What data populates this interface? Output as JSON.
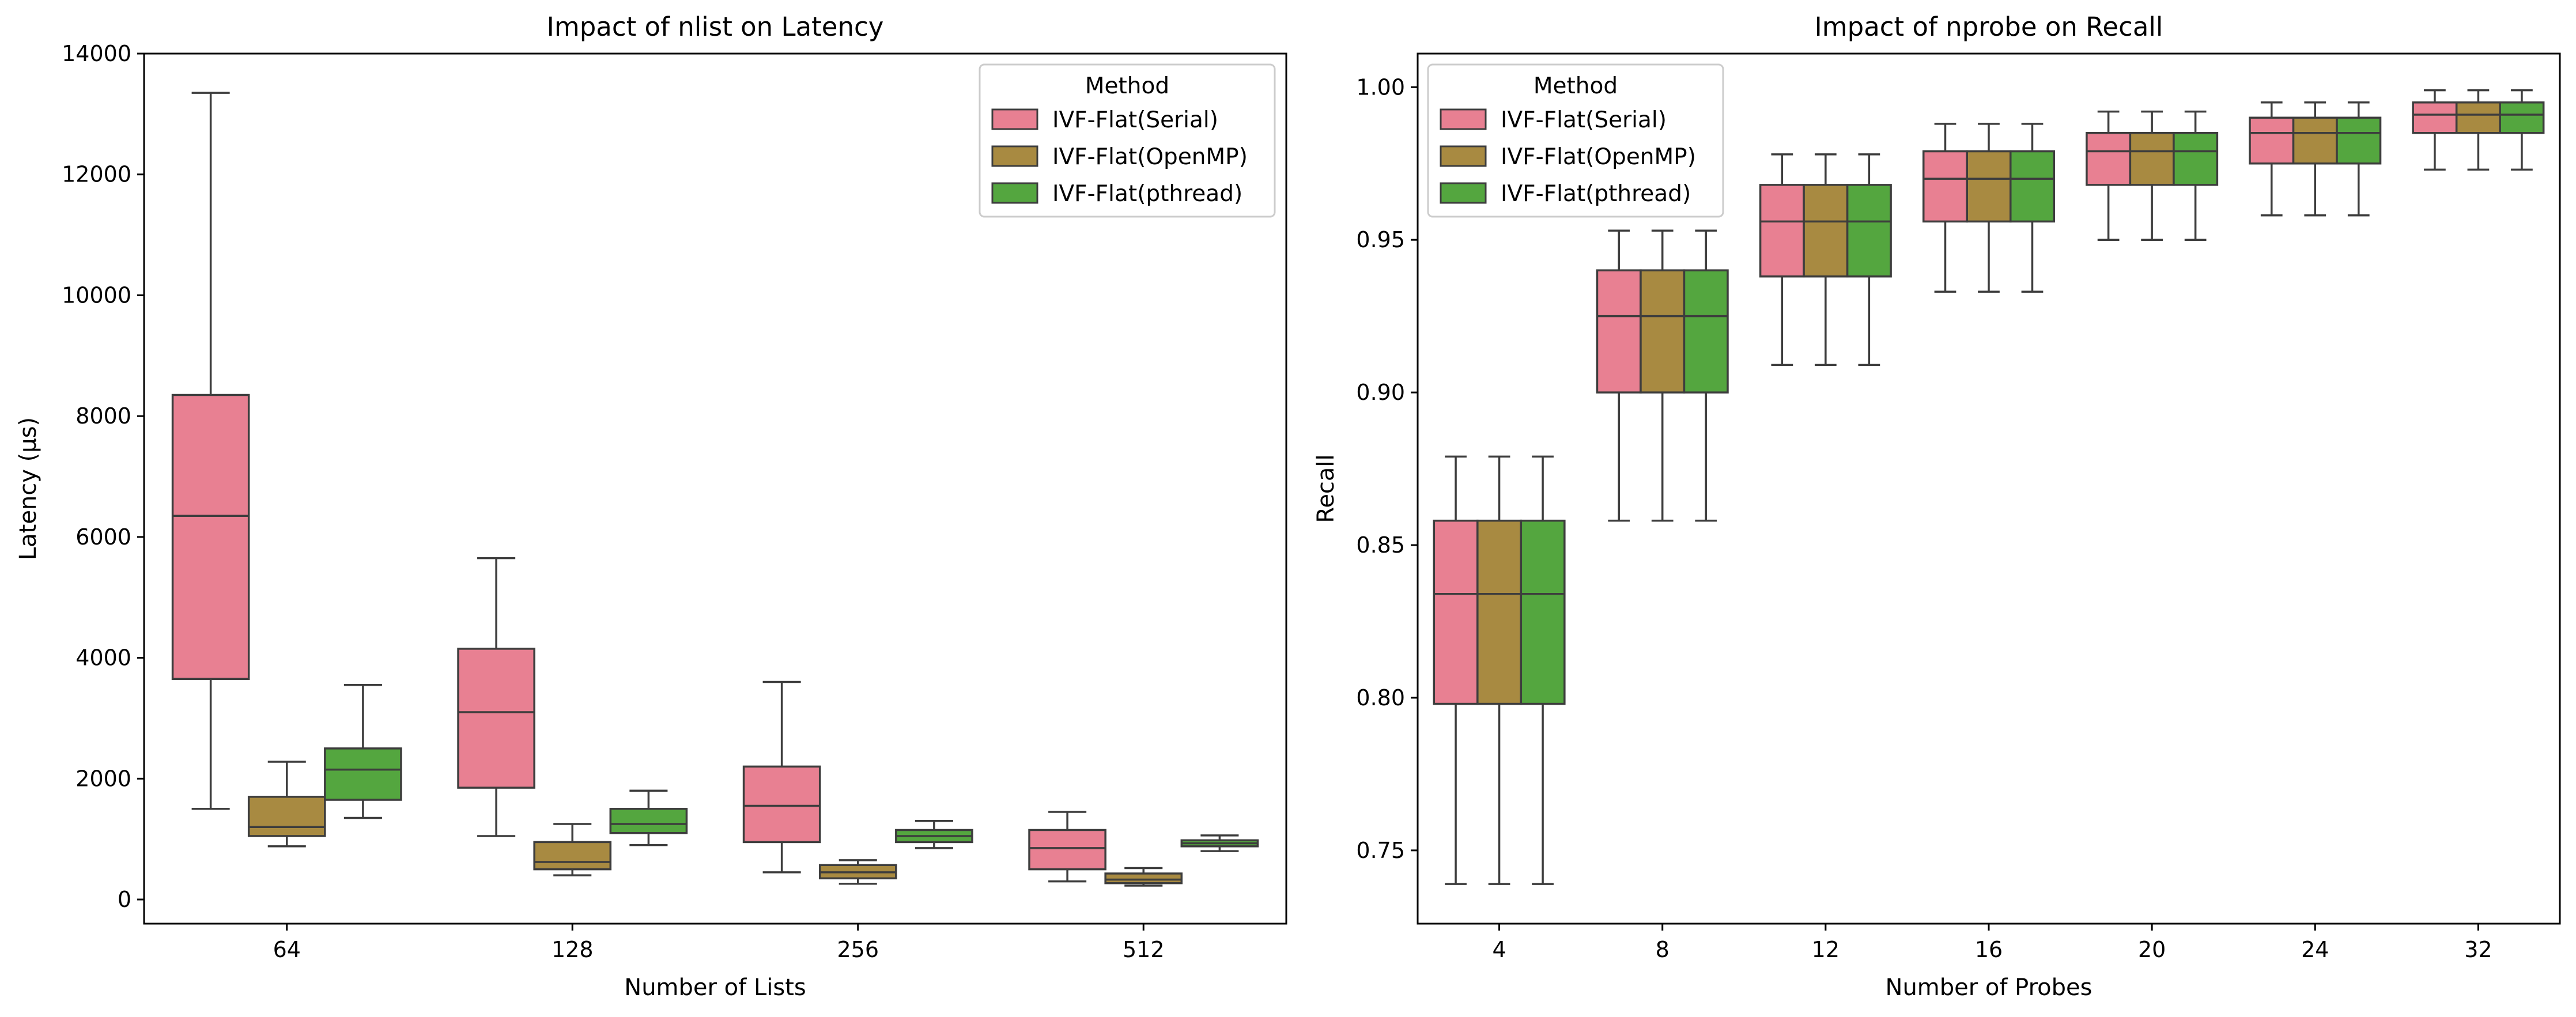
{
  "figure": {
    "colors": {
      "IVF-Flat(Serial)": "#e88092",
      "IVF-Flat(OpenMP)": "#a88a41",
      "IVF-Flat(pthread)": "#54a63f",
      "box_edge": "#3d3d3d"
    }
  },
  "chart_data": [
    {
      "type": "box",
      "title": "Impact of nlist on Latency",
      "xlabel": "Number of Lists",
      "ylabel": "Latency (µs)",
      "categories": [
        "64",
        "128",
        "256",
        "512"
      ],
      "ylim": [
        -400,
        14000
      ],
      "yticks": [
        0,
        2000,
        4000,
        6000,
        8000,
        10000,
        12000,
        14000
      ],
      "grid": false,
      "legend": {
        "title": "Method",
        "position": "top-right",
        "entries": [
          "IVF-Flat(Serial)",
          "IVF-Flat(OpenMP)",
          "IVF-Flat(pthread)"
        ]
      },
      "series": [
        {
          "name": "IVF-Flat(Serial)",
          "boxes": [
            {
              "whisker_low": 1500,
              "q1": 3650,
              "median": 6350,
              "q3": 8350,
              "whisker_high": 13350
            },
            {
              "whisker_low": 1050,
              "q1": 1850,
              "median": 3100,
              "q3": 4150,
              "whisker_high": 5650
            },
            {
              "whisker_low": 450,
              "q1": 950,
              "median": 1550,
              "q3": 2200,
              "whisker_high": 3600
            },
            {
              "whisker_low": 300,
              "q1": 500,
              "median": 850,
              "q3": 1150,
              "whisker_high": 1450
            }
          ]
        },
        {
          "name": "IVF-Flat(OpenMP)",
          "boxes": [
            {
              "whisker_low": 880,
              "q1": 1050,
              "median": 1200,
              "q3": 1700,
              "whisker_high": 2280
            },
            {
              "whisker_low": 400,
              "q1": 500,
              "median": 620,
              "q3": 950,
              "whisker_high": 1250
            },
            {
              "whisker_low": 260,
              "q1": 350,
              "median": 450,
              "q3": 570,
              "whisker_high": 650
            },
            {
              "whisker_low": 230,
              "q1": 270,
              "median": 330,
              "q3": 430,
              "whisker_high": 520
            }
          ]
        },
        {
          "name": "IVF-Flat(pthread)",
          "boxes": [
            {
              "whisker_low": 1350,
              "q1": 1650,
              "median": 2150,
              "q3": 2500,
              "whisker_high": 3550
            },
            {
              "whisker_low": 900,
              "q1": 1100,
              "median": 1250,
              "q3": 1500,
              "whisker_high": 1800
            },
            {
              "whisker_low": 850,
              "q1": 950,
              "median": 1050,
              "q3": 1150,
              "whisker_high": 1300
            },
            {
              "whisker_low": 800,
              "q1": 880,
              "median": 930,
              "q3": 980,
              "whisker_high": 1060
            }
          ]
        }
      ]
    },
    {
      "type": "box",
      "title": "Impact of nprobe on Recall",
      "xlabel": "Number of Probes",
      "ylabel": "Recall",
      "categories": [
        "4",
        "8",
        "12",
        "16",
        "20",
        "24",
        "32"
      ],
      "ylim": [
        0.726,
        1.011
      ],
      "yticks": [
        0.75,
        0.8,
        0.85,
        0.9,
        0.95,
        1.0
      ],
      "ytick_labels": [
        "0.75",
        "0.80",
        "0.85",
        "0.90",
        "0.95",
        "1.00"
      ],
      "grid": false,
      "legend": {
        "title": "Method",
        "position": "top-left",
        "entries": [
          "IVF-Flat(Serial)",
          "IVF-Flat(OpenMP)",
          "IVF-Flat(pthread)"
        ]
      },
      "series": [
        {
          "name": "IVF-Flat(Serial)",
          "boxes": [
            {
              "whisker_low": 0.739,
              "q1": 0.798,
              "median": 0.834,
              "q3": 0.858,
              "whisker_high": 0.879
            },
            {
              "whisker_low": 0.858,
              "q1": 0.9,
              "median": 0.925,
              "q3": 0.94,
              "whisker_high": 0.953
            },
            {
              "whisker_low": 0.909,
              "q1": 0.938,
              "median": 0.956,
              "q3": 0.968,
              "whisker_high": 0.978
            },
            {
              "whisker_low": 0.933,
              "q1": 0.956,
              "median": 0.97,
              "q3": 0.979,
              "whisker_high": 0.988
            },
            {
              "whisker_low": 0.95,
              "q1": 0.968,
              "median": 0.979,
              "q3": 0.985,
              "whisker_high": 0.992
            },
            {
              "whisker_low": 0.958,
              "q1": 0.975,
              "median": 0.985,
              "q3": 0.99,
              "whisker_high": 0.995
            },
            {
              "whisker_low": 0.973,
              "q1": 0.985,
              "median": 0.991,
              "q3": 0.995,
              "whisker_high": 0.999
            }
          ]
        },
        {
          "name": "IVF-Flat(OpenMP)",
          "boxes": [
            {
              "whisker_low": 0.739,
              "q1": 0.798,
              "median": 0.834,
              "q3": 0.858,
              "whisker_high": 0.879
            },
            {
              "whisker_low": 0.858,
              "q1": 0.9,
              "median": 0.925,
              "q3": 0.94,
              "whisker_high": 0.953
            },
            {
              "whisker_low": 0.909,
              "q1": 0.938,
              "median": 0.956,
              "q3": 0.968,
              "whisker_high": 0.978
            },
            {
              "whisker_low": 0.933,
              "q1": 0.956,
              "median": 0.97,
              "q3": 0.979,
              "whisker_high": 0.988
            },
            {
              "whisker_low": 0.95,
              "q1": 0.968,
              "median": 0.979,
              "q3": 0.985,
              "whisker_high": 0.992
            },
            {
              "whisker_low": 0.958,
              "q1": 0.975,
              "median": 0.985,
              "q3": 0.99,
              "whisker_high": 0.995
            },
            {
              "whisker_low": 0.973,
              "q1": 0.985,
              "median": 0.991,
              "q3": 0.995,
              "whisker_high": 0.999
            }
          ]
        },
        {
          "name": "IVF-Flat(pthread)",
          "boxes": [
            {
              "whisker_low": 0.739,
              "q1": 0.798,
              "median": 0.834,
              "q3": 0.858,
              "whisker_high": 0.879
            },
            {
              "whisker_low": 0.858,
              "q1": 0.9,
              "median": 0.925,
              "q3": 0.94,
              "whisker_high": 0.953
            },
            {
              "whisker_low": 0.909,
              "q1": 0.938,
              "median": 0.956,
              "q3": 0.968,
              "whisker_high": 0.978
            },
            {
              "whisker_low": 0.933,
              "q1": 0.956,
              "median": 0.97,
              "q3": 0.979,
              "whisker_high": 0.988
            },
            {
              "whisker_low": 0.95,
              "q1": 0.968,
              "median": 0.979,
              "q3": 0.985,
              "whisker_high": 0.992
            },
            {
              "whisker_low": 0.958,
              "q1": 0.975,
              "median": 0.985,
              "q3": 0.99,
              "whisker_high": 0.995
            },
            {
              "whisker_low": 0.973,
              "q1": 0.985,
              "median": 0.991,
              "q3": 0.995,
              "whisker_high": 0.999
            }
          ]
        }
      ]
    }
  ]
}
